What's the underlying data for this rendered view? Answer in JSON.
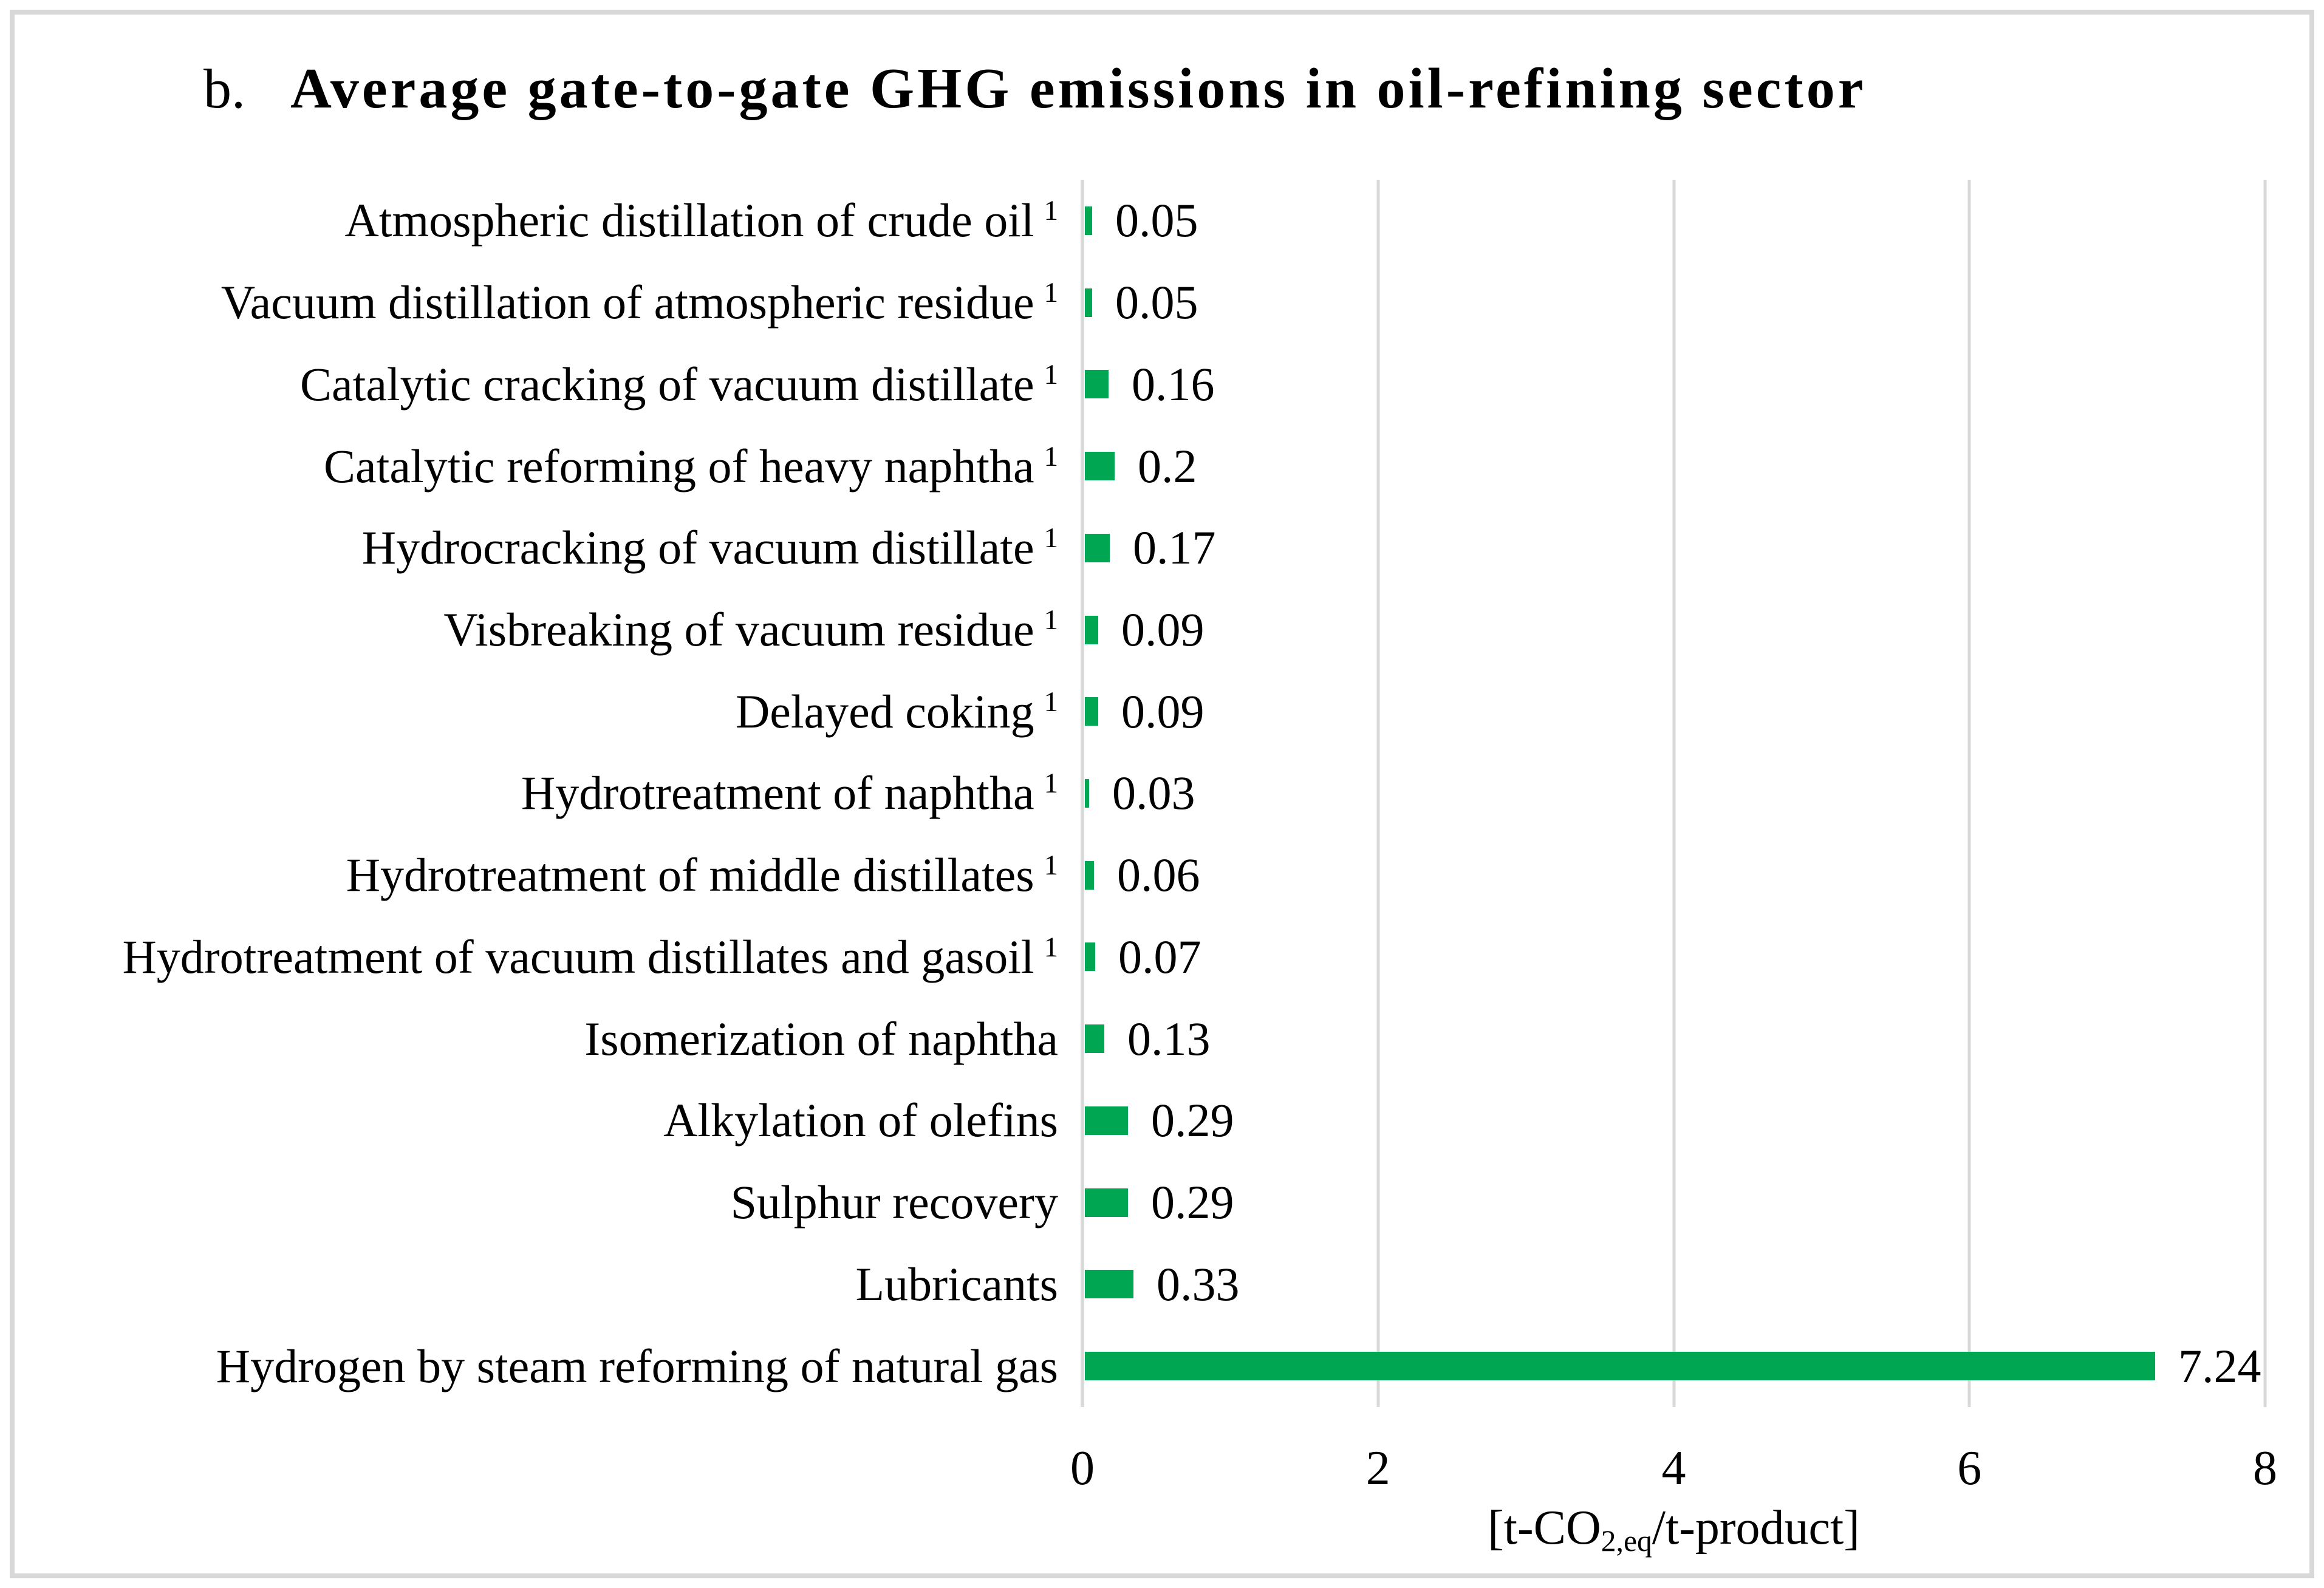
{
  "figure": {
    "title_prefix": "b.",
    "title_main": "Average gate-to-gate GHG emissions in oil-refining sector"
  },
  "chart_data": {
    "type": "bar",
    "orientation": "horizontal",
    "title": "b. Average gate-to-gate GHG emissions in oil-refining sector",
    "categories": [
      "Atmospheric distillation of crude oil",
      "Vacuum distillation of atmospheric residue",
      "Catalytic cracking of vacuum distillate",
      "Catalytic reforming of heavy naphtha",
      "Hydrocracking of vacuum distillate",
      "Visbreaking of vacuum residue",
      "Delayed coking",
      "Hydrotreatment of naphtha",
      "Hydrotreatment of middle distillates",
      "Hydrotreatment of vacuum distillates and gasoil",
      "Isomerization of naphtha",
      "Alkylation of olefins",
      "Sulphur recovery",
      "Lubricants",
      "Hydrogen by steam reforming of natural gas"
    ],
    "category_superscripts": [
      "1",
      "1",
      "1",
      "1",
      "1",
      "1",
      "1",
      "1",
      "1",
      "1",
      "",
      "",
      "",
      "",
      ""
    ],
    "values": [
      0.05,
      0.05,
      0.16,
      0.2,
      0.17,
      0.09,
      0.09,
      0.03,
      0.06,
      0.07,
      0.13,
      0.29,
      0.29,
      0.33,
      7.24
    ],
    "value_labels": [
      "0.05",
      "0.05",
      "0.16",
      "0.2",
      "0.17",
      "0.09",
      "0.09",
      "0.03",
      "0.06",
      "0.07",
      "0.13",
      "0.29",
      "0.29",
      "0.33",
      "7.24"
    ],
    "xlim": [
      0,
      8
    ],
    "xticks": [
      0,
      2,
      4,
      6,
      8
    ],
    "xtick_labels": [
      "0",
      "2",
      "4",
      "6",
      "8"
    ],
    "xlabel": {
      "pre": "[t-CO",
      "sub": "2,eq",
      "post": "/t-product]"
    },
    "grid": true,
    "legend": false,
    "bar_color": "#00A651",
    "gridline_color": "#D9D9D9"
  }
}
